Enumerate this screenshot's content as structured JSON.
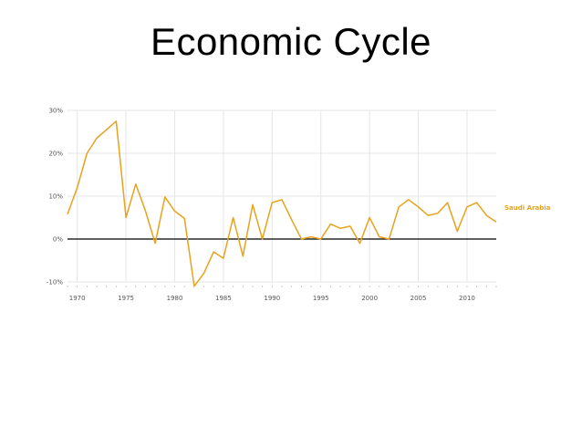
{
  "slide": {
    "title": "Economic Cycle"
  },
  "colors": {
    "series": "#E8A21C",
    "zero_line": "#000000",
    "grid": "#e6e6e6"
  },
  "chart_data": {
    "type": "line",
    "title": "",
    "xlabel": "",
    "ylabel": "",
    "xlim": [
      1969,
      2013
    ],
    "ylim": [
      -10,
      30
    ],
    "y_ticks": [
      30,
      20,
      10,
      0,
      -10
    ],
    "y_tick_labels": [
      "30%",
      "20%",
      "10%",
      "0%",
      "-10%"
    ],
    "x_ticks": [
      1970,
      1975,
      1980,
      1985,
      1990,
      1995,
      2000,
      2005,
      2010
    ],
    "x_tick_labels": [
      "1970",
      "1975",
      "1980",
      "1985",
      "1990",
      "1995",
      "2000",
      "2005",
      "2010"
    ],
    "grid": true,
    "legend": "right",
    "series": [
      {
        "name": "Saudi Arabia",
        "x": [
          1969,
          1970,
          1971,
          1972,
          1973,
          1974,
          1975,
          1976,
          1977,
          1978,
          1979,
          1980,
          1981,
          1982,
          1983,
          1984,
          1985,
          1986,
          1987,
          1988,
          1989,
          1990,
          1991,
          1992,
          1993,
          1994,
          1995,
          1996,
          1997,
          1998,
          1999,
          2000,
          2001,
          2002,
          2003,
          2004,
          2005,
          2006,
          2007,
          2008,
          2009,
          2010,
          2011,
          2012,
          2013
        ],
        "values": [
          5.8,
          12,
          20,
          23.5,
          25.5,
          27.5,
          5,
          12.8,
          6.5,
          -1,
          9.8,
          6.5,
          4.8,
          -11,
          -8,
          -3,
          -4.5,
          5,
          -4,
          8,
          0,
          8.5,
          9.2,
          4.5,
          0,
          0.5,
          0,
          3.5,
          2.5,
          3,
          -1,
          5,
          0.5,
          0,
          7.5,
          9.2,
          7.5,
          5.5,
          6,
          8.5,
          1.8,
          7.5,
          8.5,
          5.5,
          4
        ]
      }
    ]
  }
}
